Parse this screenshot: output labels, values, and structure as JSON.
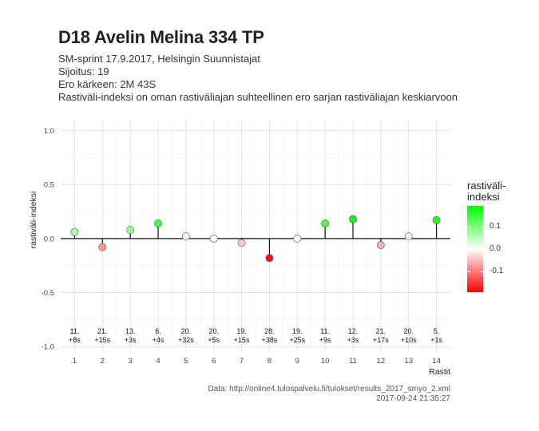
{
  "title": "D18 Avelin Melina 334 TP",
  "subtitle_lines": [
    "SM-sprint 17.9.2017, Helsingin Suunnistajat",
    "Sijoitus: 19",
    "Ero kärkeen: 2M 43S",
    "Rastiväli-indeksi on oman rastiväliajan suhteellinen ero sarjan rastiväliajan keskiarvoon"
  ],
  "source": "Data: http://online4.tulospalvelu.fi/tulokset/results_2017_smyo_2.xml",
  "timestamp": "2017-09-24 21:35:27",
  "legend": {
    "title_lines": [
      "rastiväli-",
      "indeksi"
    ],
    "ticks": [
      0.1,
      0.0,
      -0.1
    ],
    "tick_labels": [
      "0.1",
      "0.0",
      "-0.1"
    ],
    "color_high": "#00ff00",
    "color_mid": "#ffffff",
    "color_low": "#ff0000",
    "range": [
      -0.19,
      0.19
    ]
  },
  "chart_data": {
    "type": "scatter",
    "style": "lollipop",
    "xlabel": "Rastit",
    "ylabel": "rastiväli-indeksi",
    "xlim": [
      0.5,
      14.5
    ],
    "ylim": [
      -1.05,
      1.1
    ],
    "yticks": [
      -1.0,
      -0.5,
      0.0,
      0.5,
      1.0
    ],
    "ytick_labels": [
      "-1.0",
      "-0.5",
      "0.0",
      "0.5",
      "1.0"
    ],
    "x": [
      1,
      2,
      3,
      4,
      5,
      6,
      7,
      8,
      9,
      10,
      11,
      12,
      13,
      14
    ],
    "xtick_labels": [
      "1",
      "2",
      "3",
      "4",
      "5",
      "6",
      "7",
      "8",
      "9",
      "10",
      "11",
      "12",
      "13",
      "14"
    ],
    "values": [
      0.06,
      -0.08,
      0.08,
      0.14,
      0.02,
      0.0,
      -0.04,
      -0.18,
      0.0,
      0.14,
      0.18,
      -0.06,
      0.02,
      0.17
    ],
    "annotations": [
      [
        "11.",
        "+8s"
      ],
      [
        "21.",
        "+15s"
      ],
      [
        "13.",
        "+3s"
      ],
      [
        "6.",
        "+4s"
      ],
      [
        "20.",
        "+32s"
      ],
      [
        "20.",
        "+5s"
      ],
      [
        "19.",
        "+15s"
      ],
      [
        "28.",
        "+38s"
      ],
      [
        "19.",
        "+25s"
      ],
      [
        "11.",
        "+9s"
      ],
      [
        "12.",
        "+3s"
      ],
      [
        "21.",
        "+17s"
      ],
      [
        "20.",
        "+10s"
      ],
      [
        "5.",
        "+1s"
      ]
    ],
    "grid": true
  }
}
